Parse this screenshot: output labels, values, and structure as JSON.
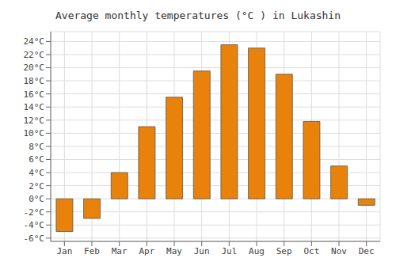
{
  "chart_data": {
    "type": "bar",
    "title": "Average monthly temperatures (°C ) in Lukashin",
    "categories": [
      "Jan",
      "Feb",
      "Mar",
      "Apr",
      "May",
      "Jun",
      "Jul",
      "Aug",
      "Sep",
      "Oct",
      "Nov",
      "Dec"
    ],
    "values": [
      -5.0,
      -3.0,
      4.0,
      11.0,
      15.5,
      19.5,
      23.5,
      23.0,
      19.0,
      11.8,
      5.0,
      -1.0
    ],
    "color": "#E8820A",
    "ylim": [
      -6.5,
      25.5
    ],
    "yticks": [
      {
        "value": -6,
        "label": "-6°C"
      },
      {
        "value": -4,
        "label": "-4°C"
      },
      {
        "value": -2,
        "label": "-2°C"
      },
      {
        "value": 0,
        "label": "0°C"
      },
      {
        "value": 2,
        "label": "2°C"
      },
      {
        "value": 4,
        "label": "4°C"
      },
      {
        "value": 6,
        "label": "6°C"
      },
      {
        "value": 8,
        "label": "8°C"
      },
      {
        "value": 10,
        "label": "10°C"
      },
      {
        "value": 12,
        "label": "12°C"
      },
      {
        "value": 14,
        "label": "14°C"
      },
      {
        "value": 16,
        "label": "16°C"
      },
      {
        "value": 18,
        "label": "18°C"
      },
      {
        "value": 20,
        "label": "20°C"
      },
      {
        "value": 22,
        "label": "22°C"
      },
      {
        "value": 24,
        "label": "24°C"
      }
    ],
    "grid": true
  }
}
